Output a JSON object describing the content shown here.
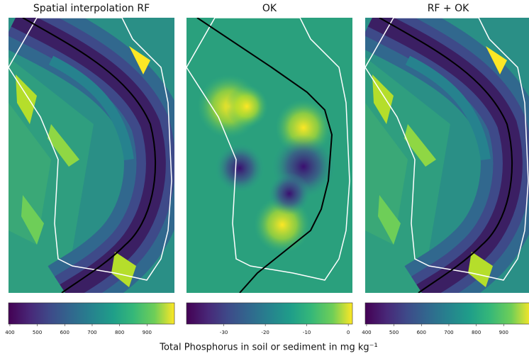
{
  "panels": [
    {
      "title": "Spatial interpolation RF",
      "colorbar": {
        "xlim": [
          395,
          1000
        ],
        "ticks": [
          400,
          500,
          600,
          700,
          800,
          900
        ]
      }
    },
    {
      "title": "OK",
      "colorbar": {
        "xlim": [
          -39,
          1
        ],
        "ticks": [
          -30,
          -20,
          -10,
          0
        ]
      }
    },
    {
      "title": "RF + OK",
      "colorbar": {
        "xlim": [
          395,
          1000
        ],
        "ticks": [
          400,
          500,
          600,
          700,
          800,
          900
        ]
      }
    }
  ],
  "colorbar_label": "Total Phosphorus in soil or sediment in mg kg⁻¹"
}
